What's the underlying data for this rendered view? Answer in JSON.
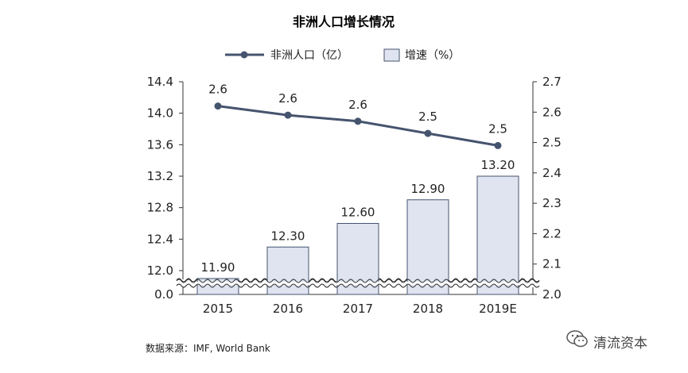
{
  "chart_data": {
    "type": "bar",
    "title": "非洲人口增长情况",
    "categories": [
      "2015",
      "2016",
      "2017",
      "2018",
      "2019E"
    ],
    "series": [
      {
        "name": "非洲人口（亿）",
        "type": "line",
        "axis": "right",
        "values": [
          2.62,
          2.59,
          2.57,
          2.53,
          2.49
        ],
        "labels": [
          "2.6",
          "2.6",
          "2.6",
          "2.5",
          "2.5"
        ]
      },
      {
        "name": "增速（%）",
        "type": "bar",
        "axis": "left",
        "values": [
          11.9,
          12.3,
          12.6,
          12.9,
          13.2
        ],
        "labels": [
          "11.90",
          "12.30",
          "12.60",
          "12.90",
          "13.20"
        ]
      }
    ],
    "left_axis": {
      "ticks": [
        "0.0",
        "12.0",
        "12.4",
        "12.8",
        "13.2",
        "13.6",
        "14.0",
        "14.4"
      ],
      "broken": true,
      "range": [
        11.7,
        14.4
      ]
    },
    "right_axis": {
      "ticks": [
        "2.0",
        "2.1",
        "2.2",
        "2.3",
        "2.4",
        "2.5",
        "2.6",
        "2.7"
      ],
      "range": [
        2.0,
        2.7
      ]
    },
    "legend_position": "top",
    "grid": false,
    "colors": {
      "line": "#45546e",
      "bar_fill": "#dfe4f0",
      "bar_stroke": "#45546e"
    }
  },
  "footer": {
    "source": "数据来源：IMF, World Bank",
    "brand": "清流资本",
    "brand_icon": "wechat-icon"
  }
}
